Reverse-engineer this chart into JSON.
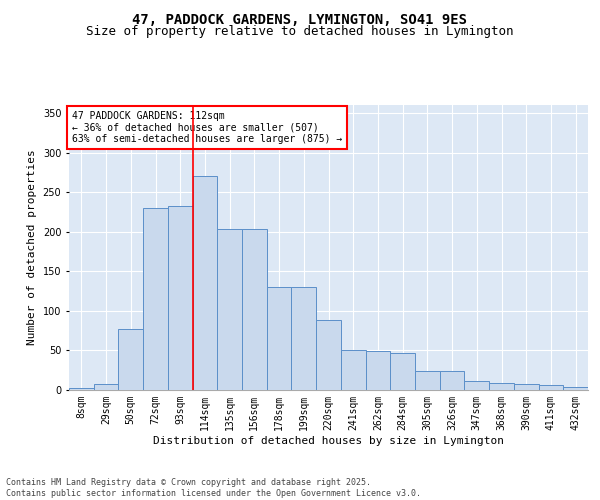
{
  "title": "47, PADDOCK GARDENS, LYMINGTON, SO41 9ES",
  "subtitle": "Size of property relative to detached houses in Lymington",
  "xlabel": "Distribution of detached houses by size in Lymington",
  "ylabel": "Number of detached properties",
  "categories": [
    "8sqm",
    "29sqm",
    "50sqm",
    "72sqm",
    "93sqm",
    "114sqm",
    "135sqm",
    "156sqm",
    "178sqm",
    "199sqm",
    "220sqm",
    "241sqm",
    "262sqm",
    "284sqm",
    "305sqm",
    "326sqm",
    "347sqm",
    "368sqm",
    "390sqm",
    "411sqm",
    "432sqm"
  ],
  "values": [
    2,
    8,
    77,
    230,
    232,
    270,
    203,
    203,
    130,
    130,
    88,
    50,
    49,
    47,
    24,
    24,
    11,
    9,
    7,
    6,
    4
  ],
  "bar_color": "#c9d9ed",
  "bar_edge_color": "#5b8fc9",
  "vline_index": 5,
  "vline_color": "red",
  "annotation_text": "47 PADDOCK GARDENS: 112sqm\n← 36% of detached houses are smaller (507)\n63% of semi-detached houses are larger (875) →",
  "annotation_box_color": "white",
  "annotation_box_edge_color": "red",
  "ylim": [
    0,
    360
  ],
  "yticks": [
    0,
    50,
    100,
    150,
    200,
    250,
    300,
    350
  ],
  "footnote": "Contains HM Land Registry data © Crown copyright and database right 2025.\nContains public sector information licensed under the Open Government Licence v3.0.",
  "bg_color": "#dde8f5",
  "title_fontsize": 10,
  "subtitle_fontsize": 9,
  "ylabel_fontsize": 8,
  "xlabel_fontsize": 8,
  "tick_fontsize": 7,
  "annotation_fontsize": 7,
  "footnote_fontsize": 6
}
